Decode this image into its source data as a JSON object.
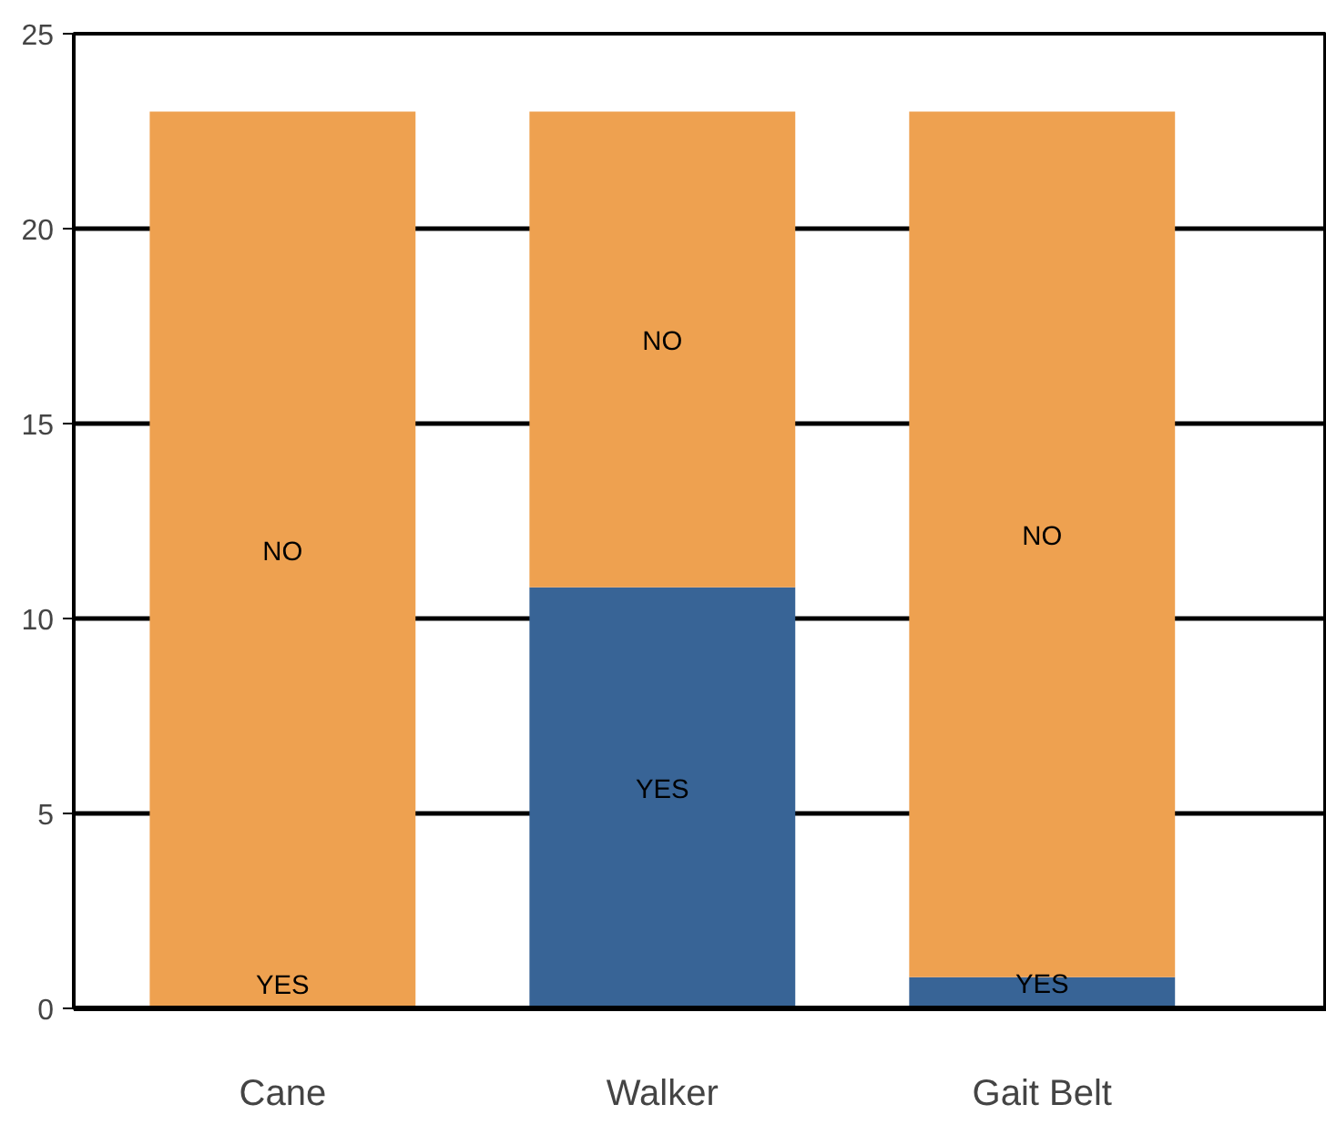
{
  "chart_data": {
    "type": "bar",
    "stacked": true,
    "categories": [
      "Cane",
      "Walker",
      "Gait Belt"
    ],
    "series": [
      {
        "name": "YES",
        "color": "#386496",
        "values": [
          0,
          10.8,
          0.8
        ]
      },
      {
        "name": "NO",
        "color": "#eea150",
        "values": [
          23,
          12.2,
          22.2
        ]
      }
    ],
    "ylim": [
      0,
      25
    ],
    "yticks": [
      0,
      5,
      10,
      15,
      20,
      25
    ],
    "grid": "y"
  }
}
